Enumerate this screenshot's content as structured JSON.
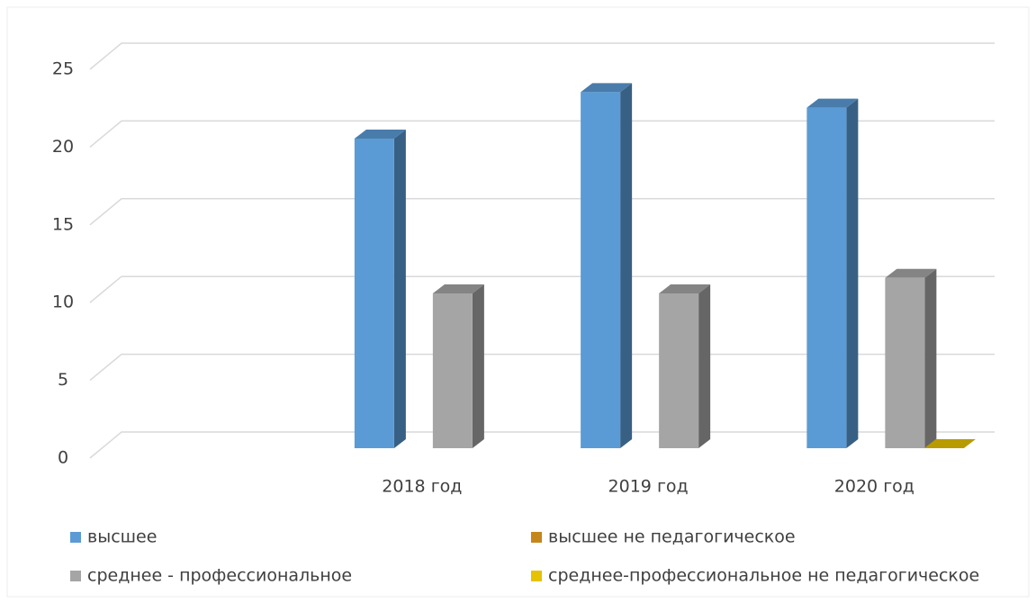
{
  "chart_data": {
    "type": "bar3d",
    "categories": [
      null,
      "2018 год",
      "2019 год",
      "2020 год"
    ],
    "series": [
      {
        "name": "высшее",
        "color": "#5b9bd5",
        "values": [
          null,
          20,
          23,
          22
        ]
      },
      {
        "name": "высшее не педагогическое",
        "color": "#c5861a",
        "values": [
          null,
          null,
          null,
          null
        ]
      },
      {
        "name": "среднее - профессиональное",
        "color": "#a5a5a5",
        "values": [
          null,
          10,
          10,
          11
        ]
      },
      {
        "name": "среднее-профессиональное не педагогическое",
        "color": "#e6c200",
        "values": [
          null,
          null,
          null,
          0
        ]
      }
    ],
    "ylim": [
      0,
      25
    ],
    "yticks": [
      0,
      5,
      10,
      15,
      20,
      25
    ],
    "grid": true,
    "legend": "bottom"
  }
}
